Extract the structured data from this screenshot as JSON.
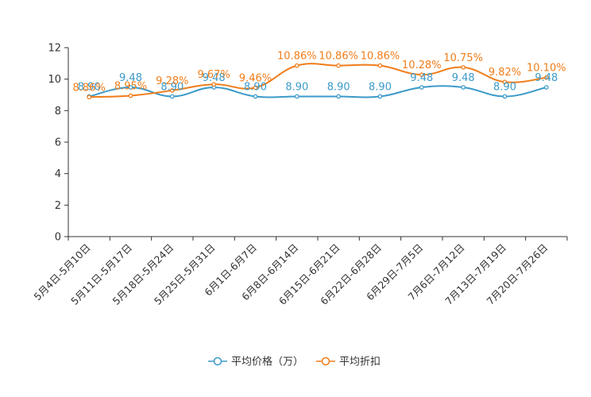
{
  "chart_data": {
    "type": "line",
    "title": "",
    "xlabel": "",
    "ylabel": "",
    "ylim": [
      0,
      12
    ],
    "yticks": [
      "0",
      "2",
      "4",
      "6",
      "8",
      "10",
      "12"
    ],
    "categories": [
      "5月4日-5月10日",
      "5月11日-5月17日",
      "5月18日-5月24日",
      "5月25日-5月31日",
      "6月1日-6月7日",
      "6月8日-6月14日",
      "6月15日-6月21日",
      "6月22日-6月28日",
      "6月29日-7月5日",
      "7月6日-7月12日",
      "7月13日-7月19日",
      "7月20日-7月26日"
    ],
    "series": [
      {
        "name": "平均价格（万）",
        "color": "#3c9ac9",
        "values": [
          8.9,
          9.48,
          8.9,
          9.48,
          8.9,
          8.9,
          8.9,
          8.9,
          9.48,
          9.48,
          8.9,
          9.48
        ],
        "labels": [
          "8.90",
          "9.48",
          "8.90",
          "9.48",
          "8.90",
          "8.90",
          "8.90",
          "8.90",
          "9.48",
          "9.48",
          "8.90",
          "9.48"
        ]
      },
      {
        "name": "平均折扣",
        "color": "#f07d1a",
        "values": [
          8.86,
          8.95,
          9.28,
          9.67,
          9.46,
          10.86,
          10.86,
          10.86,
          10.28,
          10.75,
          9.82,
          10.1
        ],
        "labels": [
          "8.86%",
          "8.95%",
          "9.28%",
          "9.67%",
          "9.46%",
          "10.86%",
          "10.86%",
          "10.86%",
          "10.28%",
          "10.75%",
          "9.82%",
          "10.10%"
        ]
      }
    ],
    "legend_position": "bottom"
  }
}
